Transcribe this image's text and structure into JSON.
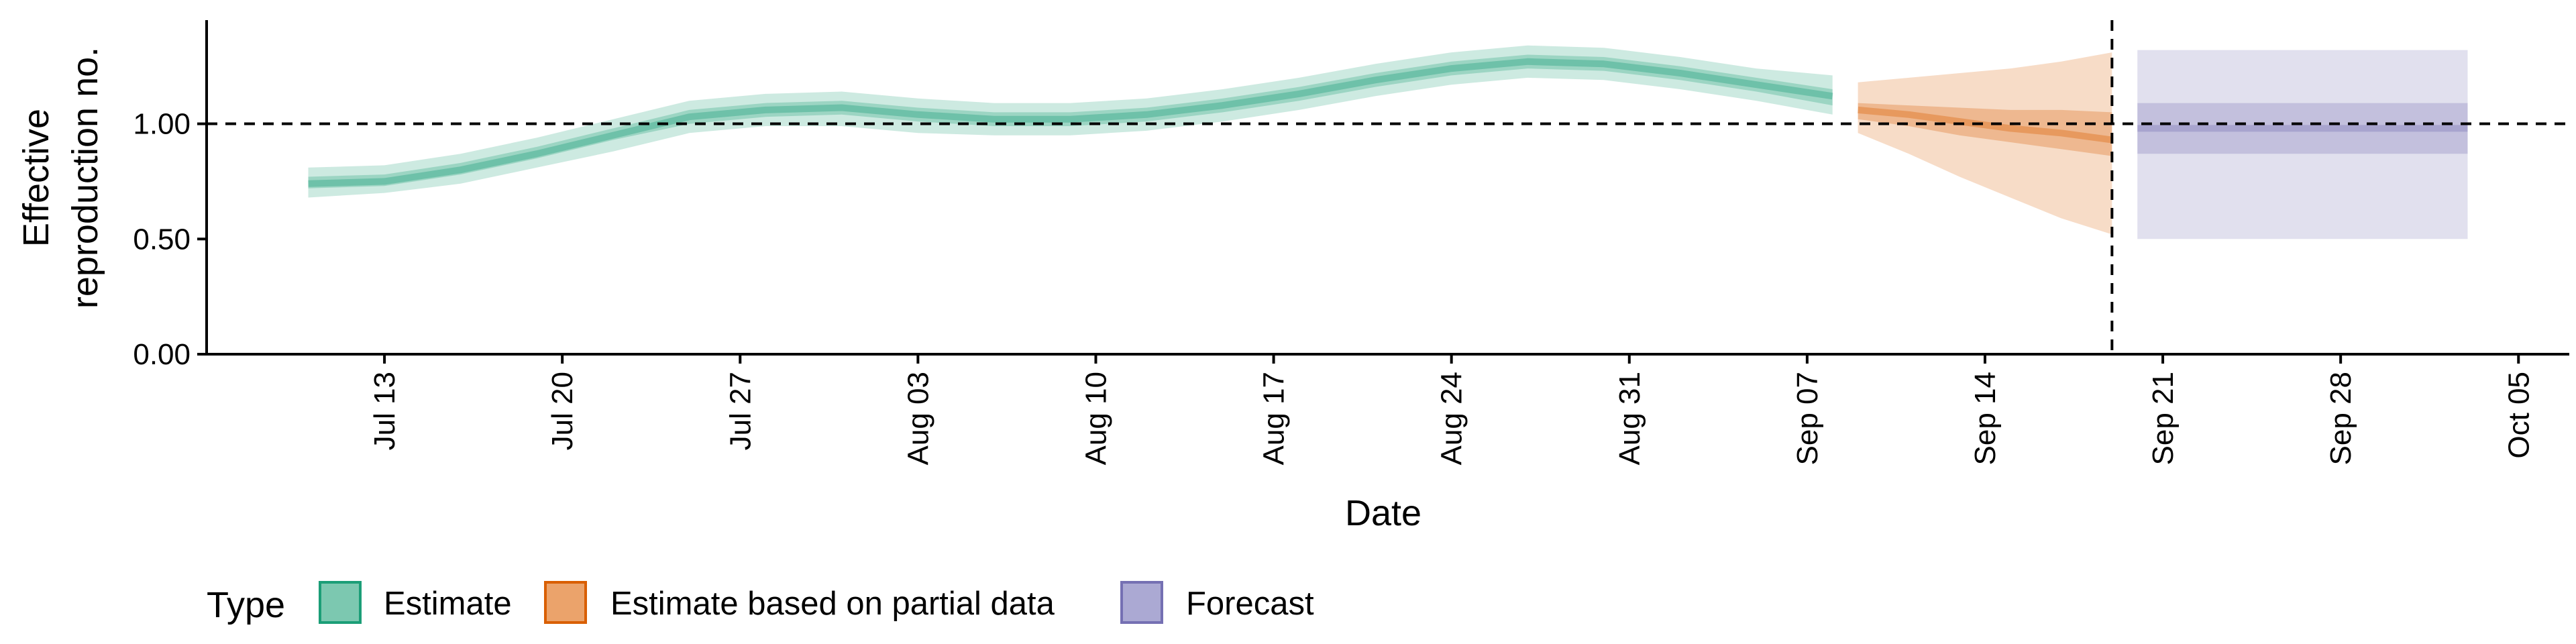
{
  "chart_data": {
    "type": "area",
    "xlabel": "Date",
    "ylabel_lines": [
      "Effective",
      "reproduction no."
    ],
    "ylim": [
      0,
      1.45
    ],
    "yticks": [
      0,
      0.5,
      1,
      1.5
    ],
    "ytick_labels": [
      "0.00",
      "0.50",
      "1.00"
    ],
    "xlim": [
      "2020-07-06",
      "2020-10-07"
    ],
    "xticks": [
      "2020-07-13",
      "2020-07-20",
      "2020-07-27",
      "2020-08-03",
      "2020-08-10",
      "2020-08-17",
      "2020-08-24",
      "2020-08-31",
      "2020-09-07",
      "2020-09-14",
      "2020-09-21",
      "2020-09-28",
      "2020-10-05"
    ],
    "xtick_labels": [
      "Jul 13",
      "Jul 20",
      "Jul 27",
      "Aug 03",
      "Aug 10",
      "Aug 17",
      "Aug 24",
      "Aug 31",
      "Sep 07",
      "Sep 14",
      "Sep 21",
      "Sep 28",
      "Oct 05"
    ],
    "reference_hline": 1.0,
    "reference_vline": "2020-09-19",
    "grid": false,
    "legend": {
      "title": "Type",
      "position": "bottom-left",
      "entries": [
        {
          "label": "Estimate",
          "fill": "#7cc8b0",
          "stroke": "#1b9e77"
        },
        {
          "label": "Estimate based on partial data",
          "fill": "#eba36b",
          "stroke": "#d95f02"
        },
        {
          "label": "Forecast",
          "fill": "#aba9d3",
          "stroke": "#7570b3"
        }
      ]
    },
    "series": [
      {
        "name": "Estimate",
        "color": "#1b9e77",
        "x": [
          "2020-07-10",
          "2020-07-13",
          "2020-07-16",
          "2020-07-19",
          "2020-07-22",
          "2020-07-25",
          "2020-07-28",
          "2020-07-31",
          "2020-08-03",
          "2020-08-06",
          "2020-08-09",
          "2020-08-12",
          "2020-08-15",
          "2020-08-18",
          "2020-08-21",
          "2020-08-24",
          "2020-08-27",
          "2020-08-30",
          "2020-09-02",
          "2020-09-05",
          "2020-09-08"
        ],
        "median": [
          0.74,
          0.75,
          0.8,
          0.87,
          0.95,
          1.03,
          1.06,
          1.07,
          1.04,
          1.02,
          1.02,
          1.04,
          1.08,
          1.13,
          1.19,
          1.24,
          1.27,
          1.26,
          1.22,
          1.17,
          1.12
        ],
        "inner_low": [
          0.72,
          0.73,
          0.78,
          0.85,
          0.93,
          1.0,
          1.03,
          1.04,
          1.01,
          0.99,
          0.99,
          1.01,
          1.05,
          1.1,
          1.16,
          1.21,
          1.24,
          1.23,
          1.19,
          1.14,
          1.08
        ],
        "inner_high": [
          0.77,
          0.78,
          0.83,
          0.9,
          0.98,
          1.06,
          1.09,
          1.1,
          1.07,
          1.05,
          1.05,
          1.07,
          1.11,
          1.16,
          1.22,
          1.27,
          1.3,
          1.29,
          1.25,
          1.2,
          1.15
        ],
        "outer_low": [
          0.68,
          0.7,
          0.74,
          0.81,
          0.88,
          0.96,
          0.99,
          0.99,
          0.96,
          0.95,
          0.95,
          0.97,
          1.01,
          1.06,
          1.12,
          1.17,
          1.2,
          1.19,
          1.15,
          1.1,
          1.04
        ],
        "outer_high": [
          0.81,
          0.82,
          0.87,
          0.94,
          1.02,
          1.1,
          1.13,
          1.14,
          1.11,
          1.09,
          1.09,
          1.11,
          1.15,
          1.2,
          1.26,
          1.31,
          1.34,
          1.33,
          1.29,
          1.24,
          1.21
        ]
      },
      {
        "name": "Estimate based on partial data",
        "color": "#d95f02",
        "x": [
          "2020-09-09",
          "2020-09-11",
          "2020-09-13",
          "2020-09-15",
          "2020-09-17",
          "2020-09-19"
        ],
        "median": [
          1.06,
          1.04,
          1.01,
          0.98,
          0.96,
          0.93
        ],
        "inner_low": [
          1.02,
          0.99,
          0.95,
          0.92,
          0.89,
          0.86
        ],
        "inner_high": [
          1.09,
          1.08,
          1.07,
          1.06,
          1.06,
          1.05
        ],
        "outer_low": [
          0.96,
          0.87,
          0.77,
          0.68,
          0.59,
          0.52
        ],
        "outer_high": [
          1.18,
          1.2,
          1.22,
          1.24,
          1.27,
          1.31
        ]
      },
      {
        "name": "Forecast",
        "color": "#7570b3",
        "x": [
          "2020-09-20",
          "2020-10-03"
        ],
        "median": [
          0.98,
          0.98
        ],
        "inner_low": [
          0.87,
          0.87
        ],
        "inner_high": [
          1.09,
          1.09
        ],
        "outer_low": [
          0.5,
          0.5
        ],
        "outer_high": [
          1.32,
          1.32
        ]
      }
    ]
  }
}
